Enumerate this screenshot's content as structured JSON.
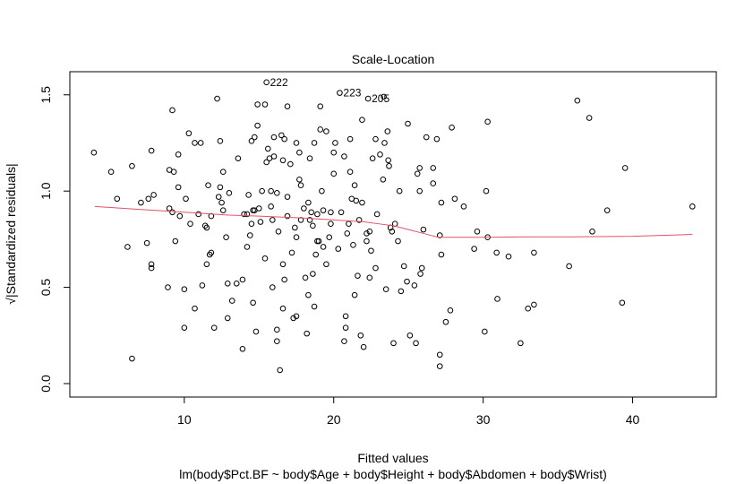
{
  "chart_data": {
    "type": "scatter",
    "title": "Scale-Location",
    "x_label": "Fitted values",
    "subtitle": "lm(body$Pct.BF ~ body$Age + body$Height + body$Abdomen + body$Wrist)",
    "y_label": "√|Standardized residuals|",
    "xlim": [
      2.34,
      45.6
    ],
    "ylim": [
      -0.07,
      1.62
    ],
    "xticks": [
      10,
      20,
      30,
      40
    ],
    "yticks": [
      {
        "value": 0,
        "label": "0.0"
      },
      0.5,
      {
        "value": 1,
        "label": "1.0"
      },
      1.5
    ],
    "color": "#000000",
    "x": [
      3.95,
      5.1,
      5.5,
      6.5,
      6.2,
      6.5,
      7.1,
      7.5,
      7.6,
      7.8,
      7.95,
      7.8,
      7.8,
      9.0,
      9.2,
      9.3,
      9.0,
      9.2,
      9.4,
      8.9,
      9.6,
      9.7,
      9.6,
      10.0,
      10.0,
      10.1,
      10.3,
      10.4,
      10.7,
      10.7,
      10.95,
      11.1,
      11.2,
      11.4,
      11.5,
      11.5,
      11.7,
      11.6,
      11.8,
      11.8,
      12.0,
      12.2,
      12.3,
      12.4,
      12.4,
      12.6,
      12.5,
      12.6,
      12.8,
      12.9,
      12.9,
      13.0,
      13.2,
      13.5,
      13.6,
      13.9,
      13.9,
      14.0,
      14.2,
      14.2,
      14.3,
      14.4,
      14.5,
      14.5,
      14.6,
      14.6,
      14.7,
      14.7,
      14.8,
      14.9,
      14.9,
      15.0,
      15.1,
      15.2,
      15.4,
      15.5,
      15.4,
      15.5,
      15.6,
      15.7,
      15.8,
      15.8,
      15.9,
      15.9,
      16.0,
      16.0,
      16.2,
      16.2,
      16.2,
      16.3,
      16.4,
      16.5,
      16.6,
      16.6,
      16.6,
      16.7,
      16.7,
      16.9,
      16.9,
      16.9,
      17.1,
      17.2,
      17.3,
      17.5,
      17.4,
      17.5,
      17.5,
      17.7,
      17.7,
      17.8,
      17.8,
      18.0,
      18.1,
      18.2,
      18.3,
      18.3,
      18.4,
      18.4,
      18.5,
      18.6,
      18.6,
      18.7,
      18.8,
      18.7,
      18.9,
      18.9,
      19.0,
      19.1,
      19.1,
      19.2,
      19.3,
      19.3,
      19.5,
      19.5,
      19.7,
      19.8,
      19.8,
      20.0,
      20.0,
      20.1,
      20.3,
      20.4,
      20.5,
      20.7,
      20.7,
      20.8,
      20.8,
      20.9,
      21.0,
      21.1,
      21.1,
      21.2,
      21.3,
      21.4,
      21.4,
      21.5,
      21.6,
      21.7,
      21.8,
      21.9,
      21.9,
      22.0,
      22.2,
      22.2,
      22.3,
      22.4,
      22.4,
      22.5,
      22.6,
      22.8,
      22.8,
      22.9,
      23.1,
      23.3,
      23.35,
      23.4,
      23.5,
      23.6,
      23.65,
      23.7,
      23.8,
      23.9,
      24.0,
      24.1,
      24.3,
      24.4,
      24.5,
      24.7,
      24.9,
      24.96,
      25.1,
      25.4,
      25.5,
      25.6,
      25.75,
      25.75,
      25.8,
      25.9,
      26.0,
      26.2,
      26.65,
      26.65,
      26.9,
      27.1,
      27.1,
      27.1,
      27.2,
      27.2,
      27.5,
      27.8,
      27.9,
      28.1,
      28.7,
      29.4,
      29.6,
      30.1,
      30.2,
      30.3,
      30.3,
      30.9,
      30.95,
      31.7,
      32.5,
      33.0,
      33.4,
      33.4,
      35.75,
      36.3,
      37.1,
      37.3,
      38.3,
      39.3,
      39.5,
      44.0
    ],
    "y": [
      1.2,
      1.1,
      0.96,
      1.13,
      0.71,
      0.13,
      0.94,
      0.73,
      0.96,
      1.21,
      0.98,
      0.62,
      0.6,
      1.11,
      1.42,
      1.1,
      0.91,
      0.89,
      0.74,
      0.5,
      1.02,
      0.87,
      1.19,
      0.49,
      0.29,
      0.96,
      1.3,
      0.83,
      1.25,
      0.39,
      0.88,
      1.25,
      0.51,
      0.82,
      0.81,
      0.62,
      0.67,
      1.03,
      0.87,
      0.68,
      0.29,
      1.48,
      0.97,
      1.26,
      1.02,
      1.1,
      0.94,
      0.9,
      0.76,
      0.52,
      0.34,
      0.99,
      0.43,
      0.52,
      1.17,
      0.18,
      0.54,
      0.88,
      0.88,
      0.71,
      0.98,
      0.77,
      0.83,
      1.26,
      0.9,
      0.42,
      1.28,
      0.9,
      0.27,
      1.45,
      1.34,
      0.91,
      0.84,
      1.0,
      1.45,
      1.565,
      0.65,
      1.15,
      1.22,
      1.17,
      1.0,
      0.92,
      0.85,
      0.5,
      1.28,
      1.18,
      0.22,
      0.99,
      0.28,
      0.79,
      0.07,
      1.29,
      1.16,
      0.62,
      0.39,
      0.54,
      1.27,
      1.44,
      0.97,
      0.87,
      1.14,
      0.68,
      0.34,
      0.35,
      0.81,
      1.25,
      0.76,
      1.06,
      1.2,
      1.03,
      0.85,
      0.91,
      0.55,
      0.26,
      0.94,
      0.46,
      0.85,
      1.17,
      0.89,
      0.82,
      0.57,
      0.4,
      0.67,
      1.25,
      0.88,
      0.74,
      0.74,
      1.44,
      1.32,
      1.0,
      0.9,
      0.71,
      0.62,
      1.31,
      0.76,
      0.89,
      0.83,
      1.2,
      1.09,
      1.25,
      0.7,
      1.51,
      0.89,
      1.18,
      0.22,
      0.35,
      0.29,
      0.78,
      0.83,
      1.27,
      1.1,
      0.96,
      0.72,
      0.46,
      1.03,
      0.95,
      0.56,
      0.85,
      0.25,
      1.37,
      0.94,
      0.19,
      0.78,
      0.74,
      1.48,
      0.79,
      0.55,
      0.69,
      1.17,
      1.27,
      0.6,
      0.88,
      1.19,
      1.06,
      1.49,
      1.25,
      0.49,
      1.31,
      1.16,
      1.13,
      0.81,
      0.79,
      0.21,
      0.83,
      0.74,
      1.0,
      0.48,
      0.61,
      0.53,
      1.35,
      0.25,
      0.51,
      0.21,
      1.09,
      1.0,
      1.12,
      0.57,
      0.6,
      0.8,
      1.28,
      1.12,
      1.04,
      1.27,
      0.15,
      0.09,
      0.77,
      0.67,
      0.94,
      0.32,
      0.38,
      1.33,
      0.96,
      0.92,
      0.7,
      0.79,
      0.27,
      1.0,
      1.36,
      0.76,
      0.68,
      0.44,
      0.66,
      0.21,
      0.39,
      0.41,
      0.68,
      0.61,
      1.47,
      1.38,
      0.79,
      0.9,
      0.42,
      1.12,
      0.92
    ],
    "smooth": {
      "color": "#DF536B",
      "x": [
        4,
        7,
        10,
        13,
        15,
        18,
        20,
        22,
        23,
        24,
        25,
        26,
        27,
        28,
        30,
        33,
        36,
        40,
        44
      ],
      "y": [
        0.92,
        0.905,
        0.89,
        0.875,
        0.87,
        0.86,
        0.85,
        0.84,
        0.83,
        0.82,
        0.8,
        0.78,
        0.76,
        0.76,
        0.76,
        0.762,
        0.762,
        0.765,
        0.775
      ]
    },
    "annotations": [
      {
        "text": "222",
        "x": 15.5,
        "y": 1.565
      },
      {
        "text": "223",
        "x": 20.4,
        "y": 1.51
      },
      {
        "text": "205",
        "x": 22.3,
        "y": 1.48
      }
    ]
  }
}
